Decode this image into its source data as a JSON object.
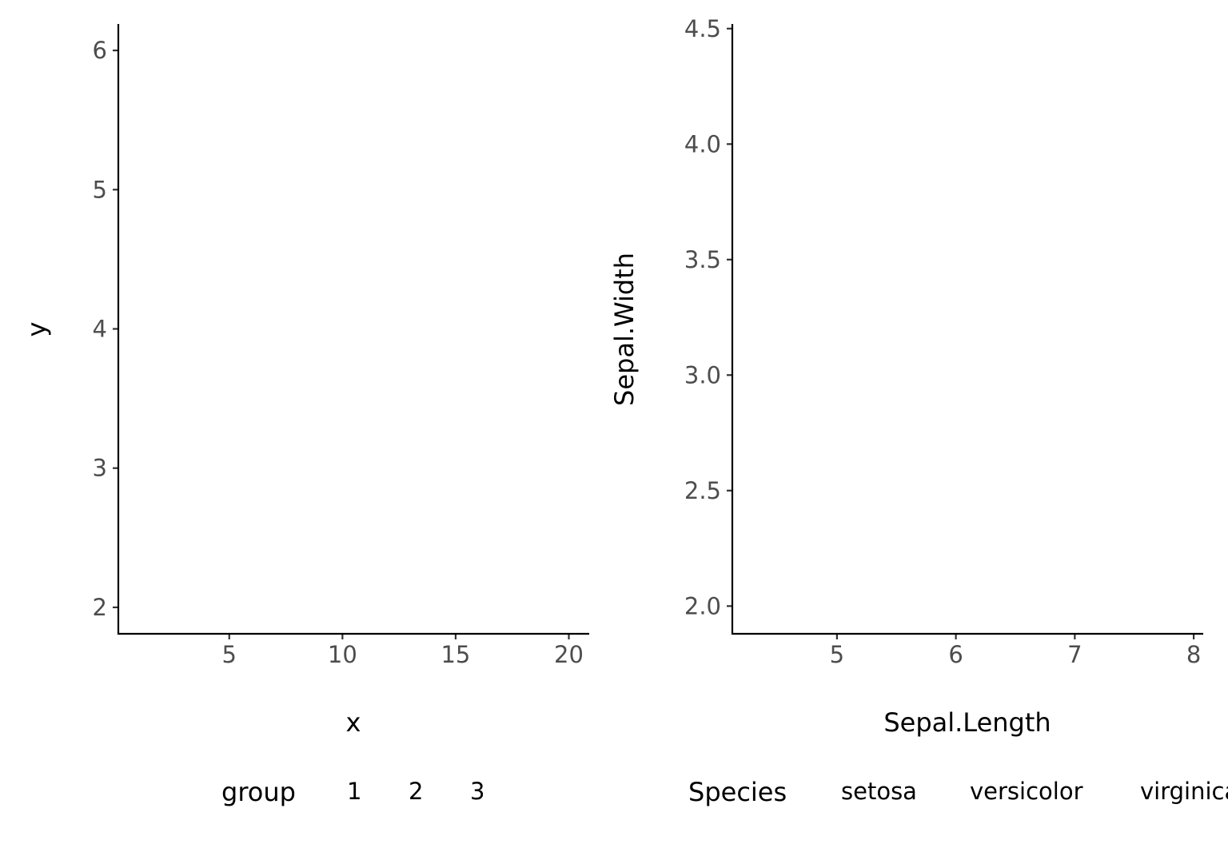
{
  "chart_data": [
    {
      "type": "scatter",
      "title": "",
      "xlabel": "x",
      "ylabel": "y",
      "xlim": [
        0.1,
        20.9
      ],
      "ylim": [
        1.81,
        6.19
      ],
      "xticks": [
        5,
        10,
        15,
        20
      ],
      "yticks": [
        2,
        3,
        4,
        5,
        6
      ],
      "xtick_labels": [
        "5",
        "10",
        "15",
        "20"
      ],
      "ytick_labels": [
        "2",
        "3",
        "4",
        "5",
        "6"
      ],
      "series": [],
      "legend": {
        "title": "group",
        "entries": [
          "1",
          "2",
          "3"
        ],
        "position": "bottom"
      },
      "grid": false
    },
    {
      "type": "scatter",
      "title": "",
      "xlabel": "Sepal.Length",
      "ylabel": "Sepal.Width",
      "xlim": [
        4.12,
        8.08
      ],
      "ylim": [
        1.88,
        4.52
      ],
      "xticks": [
        5,
        6,
        7,
        8
      ],
      "yticks": [
        2.0,
        2.5,
        3.0,
        3.5,
        4.0,
        4.5
      ],
      "xtick_labels": [
        "5",
        "6",
        "7",
        "8"
      ],
      "ytick_labels": [
        "2.0",
        "2.5",
        "3.0",
        "3.5",
        "4.0",
        "4.5"
      ],
      "series": [],
      "legend": {
        "title": "Species",
        "entries": [
          "setosa",
          "versicolor",
          "virginica"
        ],
        "position": "bottom"
      },
      "grid": false
    }
  ]
}
